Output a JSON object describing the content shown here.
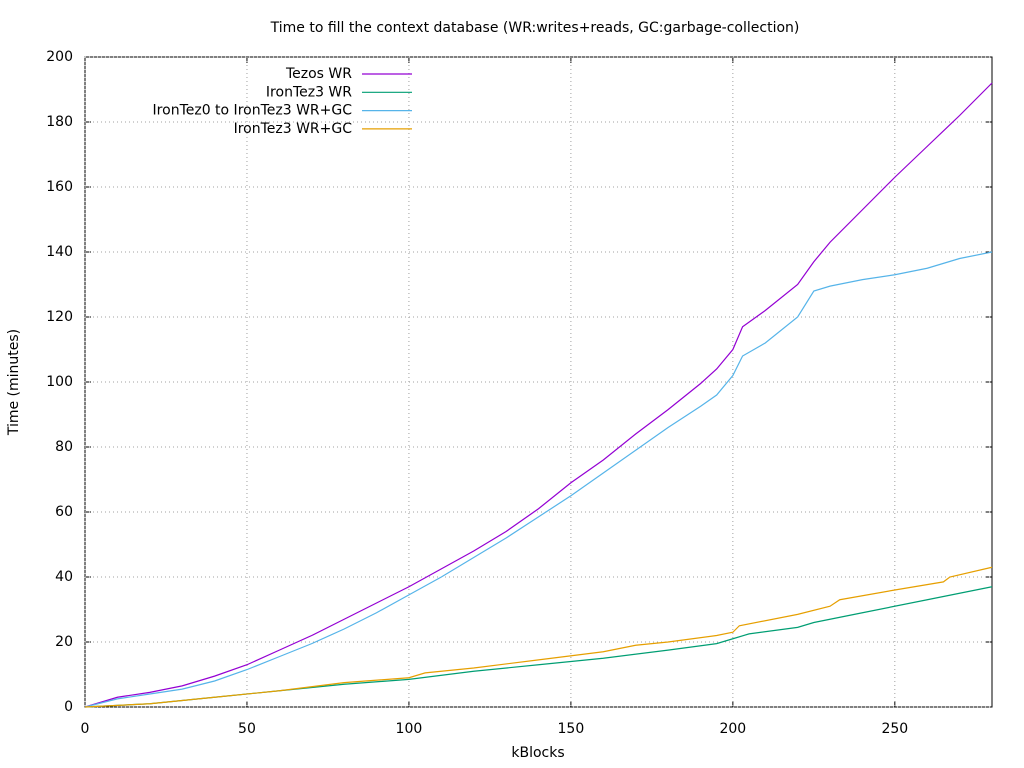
{
  "chart_data": {
    "type": "line",
    "title": "Time to fill the context database (WR:writes+reads, GC:garbage-collection)",
    "x_label": "kBlocks",
    "y_label": "Time (minutes)",
    "xlim": [
      0,
      280
    ],
    "xticks": [
      0,
      50,
      100,
      150,
      200,
      250
    ],
    "ylim": [
      0,
      200
    ],
    "yticks": [
      0,
      20,
      40,
      60,
      80,
      100,
      120,
      140,
      160,
      180,
      200
    ],
    "grid": true,
    "legend": "top-left",
    "series": [
      {
        "name": "Tezos WR",
        "color": "#9400d3",
        "x": [
          0,
          10,
          20,
          30,
          40,
          50,
          60,
          70,
          80,
          90,
          100,
          110,
          120,
          130,
          140,
          150,
          160,
          170,
          180,
          190,
          195,
          200,
          203,
          210,
          220,
          225,
          230,
          240,
          250,
          260,
          270,
          280
        ],
        "values": [
          0,
          3,
          4.5,
          6.5,
          9.5,
          13,
          17.5,
          22,
          27,
          32,
          37,
          42.5,
          48,
          54,
          61,
          69,
          76,
          84,
          91.5,
          99.5,
          104,
          110,
          117,
          122,
          130,
          137,
          143,
          153,
          163,
          172.5,
          182,
          192
        ]
      },
      {
        "name": "IronTez3 WR",
        "color": "#009e73",
        "x": [
          0,
          20,
          40,
          60,
          80,
          100,
          120,
          140,
          160,
          180,
          195,
          200,
          205,
          220,
          225,
          240,
          260,
          280
        ],
        "values": [
          0,
          1,
          3,
          5,
          7,
          8.5,
          11,
          13,
          15,
          17.5,
          19.5,
          21,
          22.5,
          24.5,
          26,
          29,
          33,
          37
        ]
      },
      {
        "name": "IronTez0 to IronTez3 WR+GC",
        "color": "#56b4e9",
        "x": [
          0,
          10,
          20,
          30,
          40,
          50,
          60,
          70,
          80,
          90,
          100,
          110,
          120,
          130,
          140,
          150,
          160,
          170,
          180,
          190,
          195,
          200,
          203,
          210,
          220,
          225,
          230,
          240,
          250,
          260,
          265,
          270,
          280
        ],
        "values": [
          0,
          2.5,
          4,
          5.5,
          8,
          11.5,
          15.5,
          19.5,
          24,
          29,
          34.5,
          40,
          46,
          52,
          58.5,
          65,
          72,
          79,
          86,
          92.5,
          96,
          102,
          108,
          112,
          120,
          128,
          129.5,
          131.5,
          133,
          135,
          136.5,
          138,
          140
        ]
      },
      {
        "name": "IronTez3 WR+GC",
        "color": "#e69f00",
        "x": [
          0,
          20,
          30,
          40,
          60,
          80,
          100,
          105,
          120,
          140,
          160,
          170,
          180,
          195,
          200,
          202,
          220,
          230,
          233,
          250,
          265,
          267,
          280
        ],
        "values": [
          0,
          1,
          2,
          3,
          5,
          7.5,
          9,
          10.5,
          12,
          14.5,
          17,
          19,
          20,
          22,
          23,
          25,
          28.5,
          31,
          33,
          36,
          38.5,
          40,
          43
        ]
      }
    ]
  }
}
